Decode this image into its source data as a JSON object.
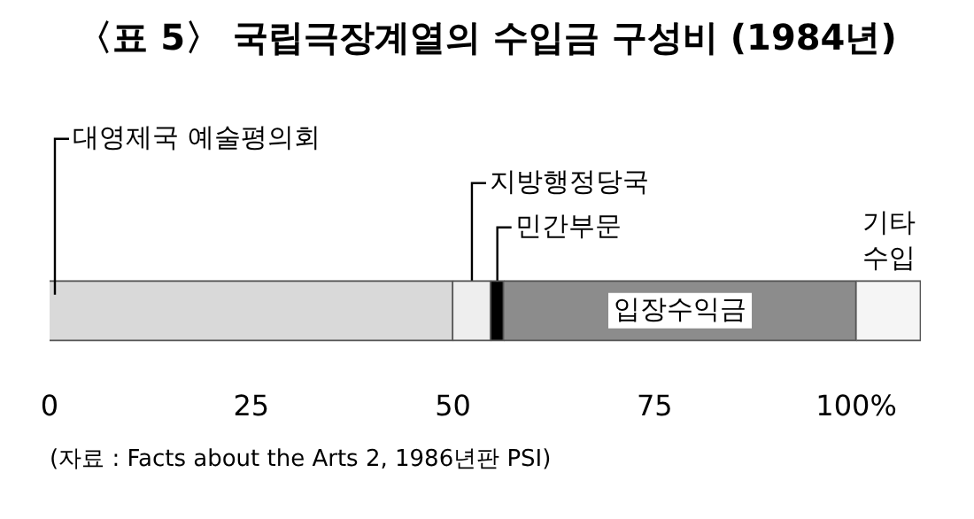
{
  "chart_data": {
    "type": "bar",
    "orientation": "horizontal",
    "stacked": true,
    "title": "〈표 5〉 국립극장계열의 수입금 구성비 (1984년)",
    "categories": [
      null
    ],
    "series": [
      {
        "name": "대영제국 예술평의회",
        "color": "#d9d9d9",
        "values": [
          50
        ]
      },
      {
        "name": "지방행정당국",
        "color": "#eeeeee",
        "values": [
          4.7
        ]
      },
      {
        "name": "민간부문",
        "color": "#000000",
        "values": [
          1.6
        ]
      },
      {
        "name": "입장수익금",
        "color": "#8c8c8c",
        "values": [
          43.7
        ]
      },
      {
        "name": "기타 수입",
        "color": "#f5f5f5",
        "values": [
          8
        ]
      }
    ],
    "xlim": [
      0,
      108
    ],
    "xticks": [
      0,
      25,
      50,
      75,
      {
        "value": 100,
        "label": "100%"
      }
    ],
    "grid": false,
    "legend": false,
    "annotations": [
      "(자료 : Facts about the Arts 2, 1986년판 PSI)"
    ]
  }
}
